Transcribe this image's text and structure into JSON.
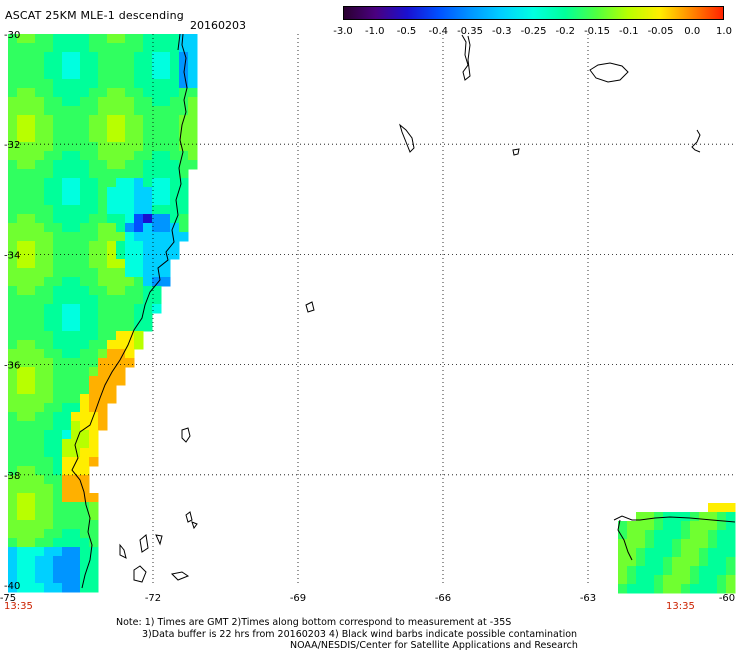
{
  "header": {
    "title": "ASCAT 25KM MLE-1 descending",
    "date": "20160203"
  },
  "colorbar": {
    "ticks": [
      "-3.0",
      "-1.0",
      "-0.5",
      "-0.4",
      "-0.35",
      "-0.3",
      "-0.25",
      "-0.2",
      "-0.15",
      "-0.1",
      "-0.05",
      "0.0",
      "1.0"
    ],
    "colors": [
      "#2a0030",
      "#4a0080",
      "#1a10d0",
      "#0050ff",
      "#0095ff",
      "#00d0ff",
      "#00ffe0",
      "#00ff9a",
      "#50ff40",
      "#b8ff00",
      "#ffee00",
      "#ff8800",
      "#ff2200"
    ]
  },
  "axes": {
    "lat_labels": [
      "-30",
      "-32",
      "-34",
      "-36",
      "-38",
      "-40"
    ],
    "lon_labels": [
      "-75",
      "-72",
      "-69",
      "-66",
      "-63",
      "-60"
    ]
  },
  "time_labels": {
    "left": "13:35",
    "right": "13:35"
  },
  "footer": {
    "line1": "Note: 1) Times are GMT 2)Times along bottom correspond to measurement at -35S",
    "line2": "3)Data buffer is 22 hrs from 20160203 4) Black wind barbs indicate possible contamination",
    "line3": "NOAA/NESDIS/Center for Satellite Applications and Research"
  }
}
